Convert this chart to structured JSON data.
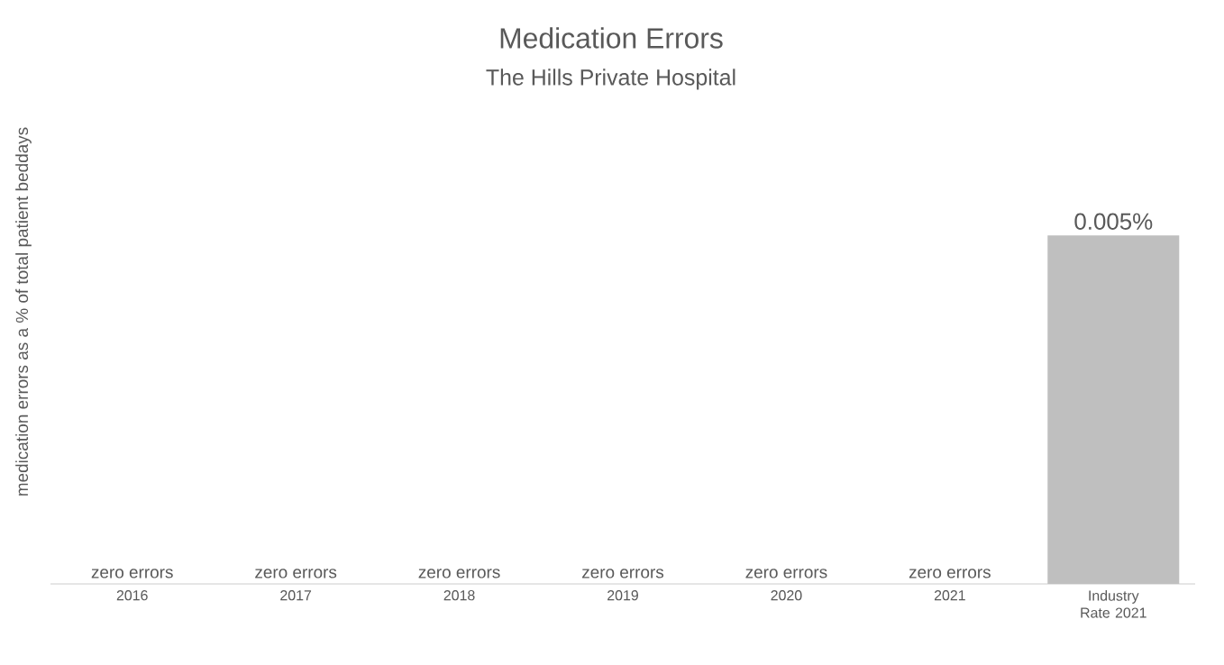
{
  "chart_data": {
    "type": "bar",
    "title": "Medication Errors",
    "subtitle": "The Hills Private Hospital",
    "ylabel": "medication errors as a % of total patient beddays",
    "categories": [
      "2016",
      "2017",
      "2018",
      "2019",
      "2020",
      "2021",
      "Industry Rate 2021"
    ],
    "values": [
      0,
      0,
      0,
      0,
      0,
      0,
      0.005
    ],
    "value_labels": [
      "zero errors",
      "zero errors",
      "zero errors",
      "zero errors",
      "zero errors",
      "zero errors",
      "0.005%"
    ],
    "color": "#bfbfbf"
  }
}
